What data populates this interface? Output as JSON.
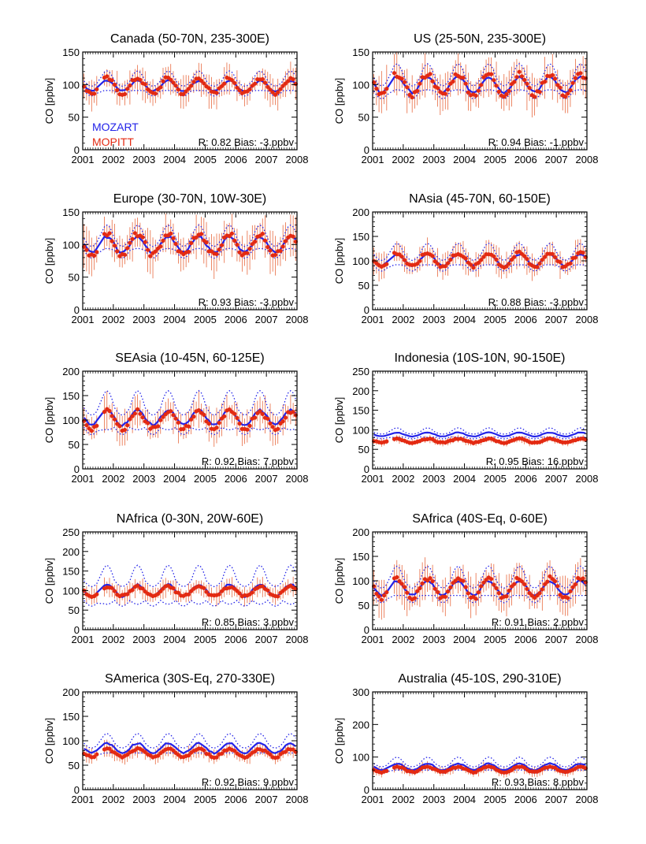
{
  "figure": {
    "background": "#ffffff"
  },
  "colors": {
    "model": "#2323e8",
    "observation": "#e32a12",
    "errorbar": "#e86a40",
    "axis": "#000000"
  },
  "chart_data": [
    {
      "type": "line",
      "title": "Canada (50-70N, 235-300E)",
      "ylabel": "CO [ppbv]",
      "ylim": [
        0,
        150
      ],
      "yticks": [
        0,
        50,
        100,
        150
      ],
      "x": [
        2001,
        2008
      ],
      "xticks": [
        "2001",
        "2002",
        "2003",
        "2004",
        "2005",
        "2006",
        "2007",
        "2008"
      ],
      "legend": [
        "MOZART",
        "MOPITT"
      ],
      "annotation": "R: 0.82  Bias: -3.ppbv",
      "series": [
        {
          "name": "MOZART",
          "style": "solid",
          "base": 98,
          "amp": 8
        },
        {
          "name": "MOZART spread",
          "style": "dotted",
          "base": 98,
          "amp": 15
        },
        {
          "name": "MOPITT",
          "style": "markers",
          "base": 98,
          "amp": 12
        }
      ]
    },
    {
      "type": "line",
      "title": "US (25-50N, 235-300E)",
      "ylabel": "CO [ppbv]",
      "ylim": [
        0,
        150
      ],
      "yticks": [
        0,
        50,
        100,
        150
      ],
      "x": [
        2001,
        2008
      ],
      "xticks": [
        "2001",
        "2002",
        "2003",
        "2004",
        "2005",
        "2006",
        "2007",
        "2008"
      ],
      "annotation": "R: 0.94  Bias: -1.ppbv",
      "series": [
        {
          "name": "MOZART",
          "style": "solid",
          "base": 100,
          "amp": 12
        },
        {
          "name": "MOZART spread",
          "style": "dotted",
          "base": 100,
          "amp": 20
        },
        {
          "name": "MOPITT",
          "style": "markers",
          "base": 100,
          "amp": 16
        }
      ]
    },
    {
      "type": "line",
      "title": "Europe (30-70N, 10W-30E)",
      "ylabel": "CO [ppbv]",
      "ylim": [
        0,
        150
      ],
      "yticks": [
        0,
        50,
        100,
        150
      ],
      "x": [
        2001,
        2008
      ],
      "xticks": [
        "2001",
        "2002",
        "2003",
        "2004",
        "2005",
        "2006",
        "2007",
        "2008"
      ],
      "annotation": "R: 0.93  Bias: -3.ppbv",
      "series": [
        {
          "name": "MOZART",
          "style": "solid",
          "base": 100,
          "amp": 12
        },
        {
          "name": "MOZART spread",
          "style": "dotted",
          "base": 100,
          "amp": 18
        },
        {
          "name": "MOPITT",
          "style": "markers",
          "base": 100,
          "amp": 16
        }
      ]
    },
    {
      "type": "line",
      "title": "NAsia (45-70N, 60-150E)",
      "ylabel": "CO [ppbv]",
      "ylim": [
        0,
        200
      ],
      "yticks": [
        0,
        50,
        100,
        150,
        200
      ],
      "x": [
        2001,
        2008
      ],
      "xticks": [
        "2001",
        "2002",
        "2003",
        "2004",
        "2005",
        "2006",
        "2007",
        "2008"
      ],
      "annotation": "R: 0.88  Bias: -3.ppbv",
      "series": [
        {
          "name": "MOZART",
          "style": "solid",
          "base": 102,
          "amp": 12
        },
        {
          "name": "MOZART spread",
          "style": "dotted",
          "base": 102,
          "amp": 22
        },
        {
          "name": "MOPITT",
          "style": "markers",
          "base": 102,
          "amp": 14
        }
      ]
    },
    {
      "type": "line",
      "title": "SEAsia (10-45N, 60-125E)",
      "ylabel": "CO [ppbv]",
      "ylim": [
        0,
        200
      ],
      "yticks": [
        0,
        50,
        100,
        150,
        200
      ],
      "x": [
        2001,
        2008
      ],
      "xticks": [
        "2001",
        "2002",
        "2003",
        "2004",
        "2005",
        "2006",
        "2007",
        "2008"
      ],
      "annotation": "R: 0.92  Bias:  7.ppbv",
      "series": [
        {
          "name": "MOZART",
          "style": "solid",
          "base": 105,
          "amp": 15
        },
        {
          "name": "MOZART spread",
          "style": "dotted",
          "base": 105,
          "amp": 40
        },
        {
          "name": "MOPITT",
          "style": "markers",
          "base": 100,
          "amp": 18
        }
      ]
    },
    {
      "type": "line",
      "title": "Indonesia (10S-10N, 90-150E)",
      "ylabel": "CO [ppbv]",
      "ylim": [
        0,
        250
      ],
      "yticks": [
        0,
        50,
        100,
        150,
        200,
        250
      ],
      "x": [
        2001,
        2008
      ],
      "xticks": [
        "2001",
        "2002",
        "2003",
        "2004",
        "2005",
        "2006",
        "2007",
        "2008"
      ],
      "annotation": "R: 0.95  Bias: 16.ppbv",
      "series": [
        {
          "name": "MOZART",
          "style": "solid",
          "base": 88,
          "amp": 5
        },
        {
          "name": "MOZART spread",
          "style": "dotted",
          "base": 88,
          "amp": 12
        },
        {
          "name": "MOPITT",
          "style": "markers",
          "base": 72,
          "amp": 5
        }
      ]
    },
    {
      "type": "line",
      "title": "NAfrica (0-30N, 20W-60E)",
      "ylabel": "CO [ppbv]",
      "ylim": [
        0,
        250
      ],
      "yticks": [
        0,
        50,
        100,
        150,
        200,
        250
      ],
      "x": [
        2001,
        2008
      ],
      "xticks": [
        "2001",
        "2002",
        "2003",
        "2004",
        "2005",
        "2006",
        "2007",
        "2008"
      ],
      "annotation": "R: 0.85  Bias:  3.ppbv",
      "series": [
        {
          "name": "MOZART",
          "style": "solid",
          "base": 100,
          "amp": 15
        },
        {
          "name": "MOZART spread",
          "style": "dotted",
          "base": 100,
          "amp": 50
        },
        {
          "name": "MOPITT",
          "style": "markers",
          "base": 98,
          "amp": 12
        }
      ]
    },
    {
      "type": "line",
      "title": "SAfrica (40S-Eq, 0-60E)",
      "ylabel": "CO [ppbv]",
      "ylim": [
        0,
        200
      ],
      "yticks": [
        0,
        50,
        100,
        150,
        200
      ],
      "x": [
        2001,
        2008
      ],
      "xticks": [
        "2001",
        "2002",
        "2003",
        "2004",
        "2005",
        "2006",
        "2007",
        "2008"
      ],
      "annotation": "R: 0.91  Bias:  2.ppbv",
      "series": [
        {
          "name": "MOZART",
          "style": "solid",
          "base": 85,
          "amp": 15
        },
        {
          "name": "MOZART spread",
          "style": "dotted",
          "base": 85,
          "amp": 30
        },
        {
          "name": "MOPITT",
          "style": "markers",
          "base": 85,
          "amp": 20
        }
      ]
    },
    {
      "type": "line",
      "title": "SAmerica (30S-Eq, 270-330E)",
      "ylabel": "CO [ppbv]",
      "ylim": [
        0,
        200
      ],
      "yticks": [
        0,
        50,
        100,
        150,
        200
      ],
      "x": [
        2001,
        2008
      ],
      "xticks": [
        "2001",
        "2002",
        "2003",
        "2004",
        "2005",
        "2006",
        "2007",
        "2008"
      ],
      "annotation": "R: 0.92  Bias:  9.ppbv",
      "series": [
        {
          "name": "MOZART",
          "style": "solid",
          "base": 85,
          "amp": 10
        },
        {
          "name": "MOZART spread",
          "style": "dotted",
          "base": 85,
          "amp": 20
        },
        {
          "name": "MOPITT",
          "style": "markers",
          "base": 75,
          "amp": 8
        }
      ]
    },
    {
      "type": "line",
      "title": "Australia (45-10S, 290-310E)",
      "ylabel": "CO [ppbv]",
      "ylim": [
        0,
        300
      ],
      "yticks": [
        0,
        100,
        200,
        300
      ],
      "x": [
        2001,
        2008
      ],
      "xticks": [
        "2001",
        "2002",
        "2003",
        "2004",
        "2005",
        "2006",
        "2007",
        "2008"
      ],
      "annotation": "R: 0.93  Bias:  8.ppbv",
      "series": [
        {
          "name": "MOZART",
          "style": "solid",
          "base": 70,
          "amp": 10
        },
        {
          "name": "MOZART spread",
          "style": "dotted",
          "base": 70,
          "amp": 20
        },
        {
          "name": "MOPITT",
          "style": "markers",
          "base": 62,
          "amp": 8
        }
      ]
    }
  ]
}
